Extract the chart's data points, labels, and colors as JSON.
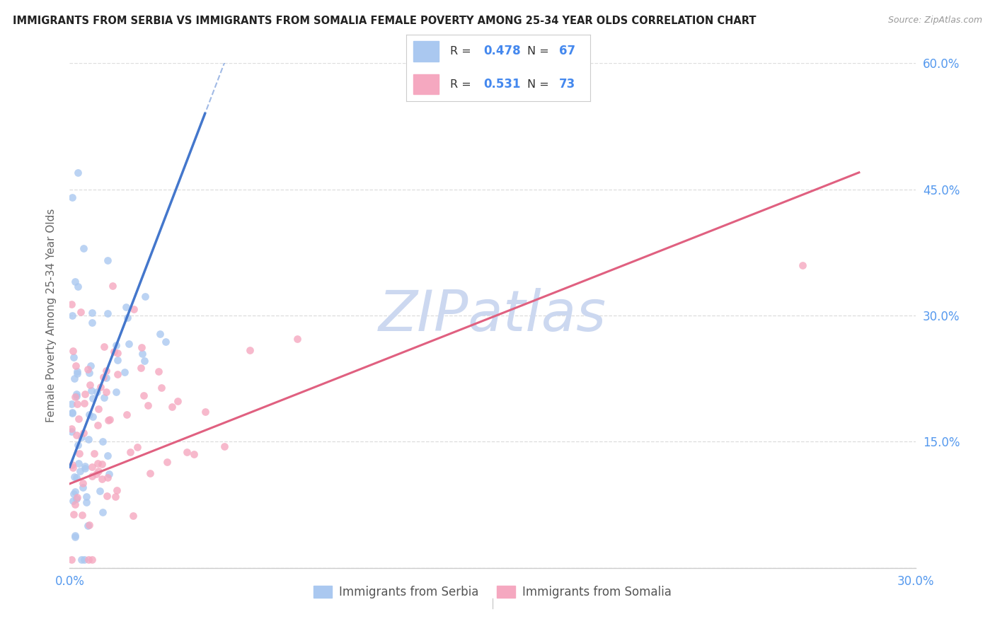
{
  "title": "IMMIGRANTS FROM SERBIA VS IMMIGRANTS FROM SOMALIA FEMALE POVERTY AMONG 25-34 YEAR OLDS CORRELATION CHART",
  "source": "Source: ZipAtlas.com",
  "ylabel": "Female Poverty Among 25-34 Year Olds",
  "xlim": [
    0.0,
    0.3
  ],
  "ylim": [
    0.0,
    0.6
  ],
  "x_ticks": [
    0.0,
    0.05,
    0.1,
    0.15,
    0.2,
    0.25,
    0.3
  ],
  "x_tick_labels": [
    "0.0%",
    "",
    "",
    "",
    "",
    "",
    "30.0%"
  ],
  "y_ticks": [
    0.0,
    0.15,
    0.3,
    0.45,
    0.6
  ],
  "y_tick_labels_right": [
    "",
    "15.0%",
    "30.0%",
    "45.0%",
    "60.0%"
  ],
  "serbia_R": 0.478,
  "serbia_N": 67,
  "somalia_R": 0.531,
  "somalia_N": 73,
  "serbia_color": "#aac8f0",
  "somalia_color": "#f5a8c0",
  "serbia_trend_color": "#4477cc",
  "somalia_trend_color": "#e06080",
  "watermark_text": "ZIPatlas",
  "watermark_color": "#ccd8f0",
  "legend_serbia_label": "Immigrants from Serbia",
  "legend_somalia_label": "Immigrants from Somalia",
  "background_color": "#ffffff",
  "grid_color": "#dddddd",
  "title_color": "#222222",
  "tick_color": "#5599ee",
  "legend_text_color": "#333333",
  "legend_value_color": "#4488ee"
}
